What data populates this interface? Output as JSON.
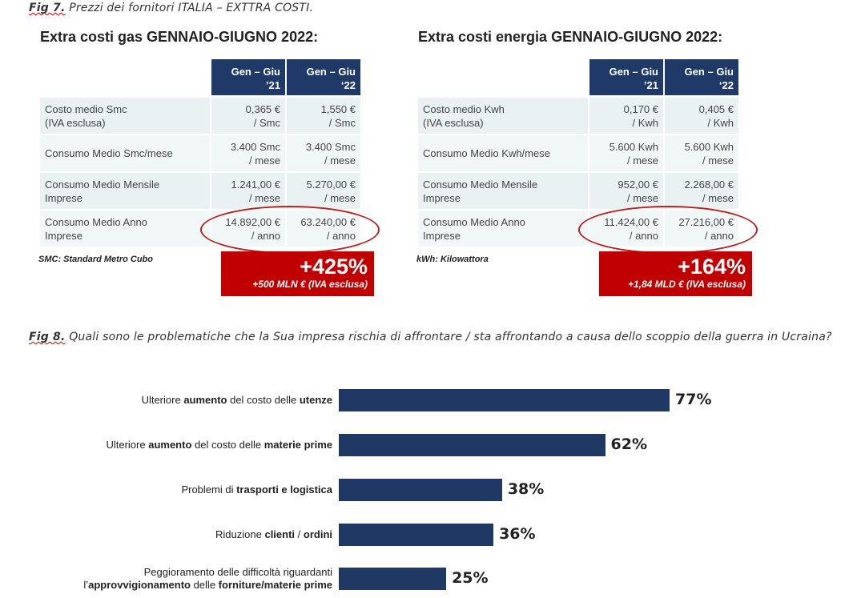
{
  "fig7": {
    "label": "Fig 7.",
    "caption": "Prezzi dei fornitori ITALIA – EXTTRA COSTI."
  },
  "gas": {
    "title": "Extra costi gas GENNAIO-GIUGNO 2022:",
    "headers": [
      [
        "Gen – Giu",
        "’21"
      ],
      [
        "Gen – Giu",
        "‘22"
      ]
    ],
    "rows": [
      {
        "label": [
          "Costo medio Smc",
          "(IVA esclusa)"
        ],
        "v1": [
          "0,365 €",
          "/ Smc"
        ],
        "v2": [
          "1,550 €",
          "/ Smc"
        ]
      },
      {
        "label": [
          "Consumo Medio Smc/mese",
          ""
        ],
        "v1": [
          "3.400 Smc",
          "/ mese"
        ],
        "v2": [
          "3.400 Smc",
          "/ mese"
        ]
      },
      {
        "label": [
          "Consumo Medio Mensile",
          "Imprese"
        ],
        "v1": [
          "1.241,00 €",
          "/ mese"
        ],
        "v2": [
          "5.270,00 €",
          "/ mese"
        ]
      },
      {
        "label": [
          "Consumo Medio Anno",
          "Imprese"
        ],
        "v1": [
          "14.892,00 €",
          "/ anno"
        ],
        "v2": [
          "63.240,00 €",
          "/ anno"
        ]
      }
    ],
    "note": "SMC: Standard Metro Cubo",
    "increase": "+425%",
    "increase_detail": "+500 MLN € (IVA esclusa)"
  },
  "energy": {
    "title": "Extra costi energia GENNAIO-GIUGNO 2022:",
    "headers": [
      [
        "Gen – Giu",
        "’21"
      ],
      [
        "Gen – Giu",
        "‘22"
      ]
    ],
    "rows": [
      {
        "label": [
          "Costo medio Kwh",
          "(IVA esclusa)"
        ],
        "v1": [
          "0,170 €",
          "/ Kwh"
        ],
        "v2": [
          "0,405 €",
          "/ Kwh"
        ]
      },
      {
        "label": [
          "Consumo Medio Kwh/mese",
          ""
        ],
        "v1": [
          "5.600 Kwh",
          "/ mese"
        ],
        "v2": [
          "5.600 Kwh",
          "/ mese"
        ]
      },
      {
        "label": [
          "Consumo Medio Mensile",
          "Imprese"
        ],
        "v1": [
          "952,00 €",
          "/ mese"
        ],
        "v2": [
          "2.268,00 €",
          "/ mese"
        ]
      },
      {
        "label": [
          "Consumo Medio Anno",
          "Imprese"
        ],
        "v1": [
          "11.424,00 €",
          "/ anno"
        ],
        "v2": [
          "27.216,00 €",
          "/ anno"
        ]
      }
    ],
    "note": "kWh: Kilowattora",
    "increase": "+164%",
    "increase_detail": "+1,84 MLD € (IVA esclusa)"
  },
  "fig8": {
    "label": "Fig 8.",
    "caption": "Quali sono le problematiche che la Sua impresa rischia di affrontare / sta affrontando a causa dello scoppio della guerra in Ucraina?"
  },
  "chart_data": {
    "type": "bar",
    "orientation": "horizontal",
    "categories": [
      "Ulteriore aumento del costo delle utenze",
      "Ulteriore aumento del costo delle materie prime",
      "Problemi di trasporti e logistica",
      "Riduzione clienti / ordini",
      "Peggioramento delle difficoltà riguardanti l’approvvigionamento delle forniture/materie prime"
    ],
    "category_segments": [
      [
        [
          "Ulteriore ",
          false
        ],
        [
          "aumento",
          true
        ],
        [
          " del costo delle ",
          false
        ],
        [
          "utenze",
          true
        ]
      ],
      [
        [
          "Ulteriore ",
          false
        ],
        [
          "aumento",
          true
        ],
        [
          " del costo delle ",
          false
        ],
        [
          "materie prime",
          true
        ]
      ],
      [
        [
          "Problemi di ",
          false
        ],
        [
          "trasporti e logistica",
          true
        ]
      ],
      [
        [
          "Riduzione ",
          false
        ],
        [
          "clienti",
          true
        ],
        [
          " / ",
          false
        ],
        [
          "ordini",
          true
        ]
      ],
      [
        [
          "Peggioramento delle difficoltà riguardanti\nl’",
          false
        ],
        [
          "approvvigionamento",
          true
        ],
        [
          " delle ",
          false
        ],
        [
          "forniture/materie prime",
          true
        ]
      ]
    ],
    "values": [
      77,
      62,
      38,
      36,
      25
    ],
    "data_labels": [
      "77%",
      "62%",
      "38%",
      "36%",
      "25%"
    ],
    "bar_color": "#1f3864",
    "grid": false
  }
}
